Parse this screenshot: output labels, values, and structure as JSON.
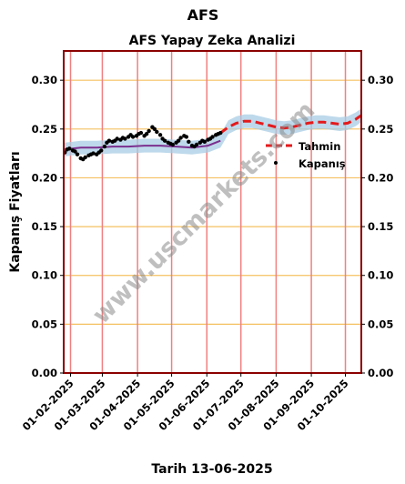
{
  "suptitle": "AFS",
  "watermark": "www.uscmarkets.com",
  "colors": {
    "frame": "#8b0000",
    "vline": "#f08080",
    "hgrid": "#f5c060",
    "forecast": "#e41a1c",
    "band": "#a8cce4",
    "actual": "#000000",
    "model": "#7b2f8e",
    "watermark": "#8a8a8a"
  },
  "chart_data": {
    "type": "line",
    "title": "AFS Yapay Zeka Analizi",
    "xlabel": "Tarih 13-06-2025",
    "ylabel": "Kapanış Fiyatları",
    "ylim": [
      0,
      0.33
    ],
    "xlim": [
      "2025-01-26",
      "2025-10-15"
    ],
    "y_ticks": [
      "0.00",
      "0.05",
      "0.10",
      "0.15",
      "0.20",
      "0.25",
      "0.30"
    ],
    "x_ticks": [
      "01-02-2025",
      "01-03-2025",
      "01-04-2025",
      "01-05-2025",
      "01-06-2025",
      "01-07-2025",
      "01-08-2025",
      "01-09-2025",
      "01-10-2025"
    ],
    "grid": "vertical lines at month starts, horizontal lines at y ticks",
    "legend_position": "right",
    "legend": [
      "Tahmin",
      "Kapanış"
    ],
    "series": [
      {
        "name": "Kapanış",
        "style": "points",
        "color": "#000000",
        "x": [
          "2025-01-27",
          "2025-01-29",
          "2025-01-31",
          "2025-02-03",
          "2025-02-05",
          "2025-02-07",
          "2025-02-10",
          "2025-02-12",
          "2025-02-14",
          "2025-02-17",
          "2025-02-19",
          "2025-02-21",
          "2025-02-24",
          "2025-02-26",
          "2025-02-28",
          "2025-03-03",
          "2025-03-05",
          "2025-03-07",
          "2025-03-10",
          "2025-03-12",
          "2025-03-14",
          "2025-03-17",
          "2025-03-19",
          "2025-03-21",
          "2025-03-24",
          "2025-03-26",
          "2025-03-28",
          "2025-03-31",
          "2025-04-02",
          "2025-04-04",
          "2025-04-07",
          "2025-04-09",
          "2025-04-11",
          "2025-04-14",
          "2025-04-16",
          "2025-04-18",
          "2025-04-21",
          "2025-04-23",
          "2025-04-25",
          "2025-04-28",
          "2025-04-30",
          "2025-05-02",
          "2025-05-05",
          "2025-05-07",
          "2025-05-09",
          "2025-05-12",
          "2025-05-14",
          "2025-05-16",
          "2025-05-19",
          "2025-05-21",
          "2025-05-23",
          "2025-05-26",
          "2025-05-28",
          "2025-05-30",
          "2025-06-02",
          "2025-06-04",
          "2025-06-06",
          "2025-06-09",
          "2025-06-11",
          "2025-06-13"
        ],
        "values": [
          0.226,
          0.229,
          0.23,
          0.228,
          0.227,
          0.224,
          0.22,
          0.219,
          0.221,
          0.223,
          0.224,
          0.225,
          0.224,
          0.226,
          0.228,
          0.232,
          0.236,
          0.238,
          0.237,
          0.238,
          0.24,
          0.239,
          0.241,
          0.24,
          0.242,
          0.244,
          0.242,
          0.243,
          0.245,
          0.246,
          0.243,
          0.245,
          0.248,
          0.252,
          0.25,
          0.247,
          0.244,
          0.24,
          0.238,
          0.236,
          0.235,
          0.234,
          0.236,
          0.238,
          0.241,
          0.243,
          0.242,
          0.237,
          0.233,
          0.232,
          0.234,
          0.236,
          0.238,
          0.237,
          0.239,
          0.24,
          0.242,
          0.244,
          0.245,
          0.246
        ]
      },
      {
        "name": "Model",
        "style": "line",
        "color": "#7b2f8e",
        "x": [
          "2025-01-27",
          "2025-02-10",
          "2025-02-24",
          "2025-03-10",
          "2025-03-24",
          "2025-04-07",
          "2025-04-21",
          "2025-05-05",
          "2025-05-19",
          "2025-06-02",
          "2025-06-13"
        ],
        "values": [
          0.229,
          0.231,
          0.231,
          0.232,
          0.232,
          0.233,
          0.233,
          0.232,
          0.231,
          0.233,
          0.238
        ]
      },
      {
        "name": "Tahmin",
        "style": "dashed",
        "color": "#e41a1c",
        "x": [
          "2025-06-13",
          "2025-06-20",
          "2025-06-27",
          "2025-07-04",
          "2025-07-11",
          "2025-07-18",
          "2025-07-25",
          "2025-08-01",
          "2025-08-08",
          "2025-08-15",
          "2025-08-22",
          "2025-08-29",
          "2025-09-05",
          "2025-09-12",
          "2025-09-19",
          "2025-09-26",
          "2025-10-03",
          "2025-10-10",
          "2025-10-15"
        ],
        "values": [
          0.246,
          0.252,
          0.256,
          0.258,
          0.258,
          0.256,
          0.254,
          0.252,
          0.251,
          0.252,
          0.254,
          0.256,
          0.257,
          0.257,
          0.256,
          0.255,
          0.256,
          0.26,
          0.264
        ]
      }
    ],
    "band_halfwidth": 0.007
  }
}
